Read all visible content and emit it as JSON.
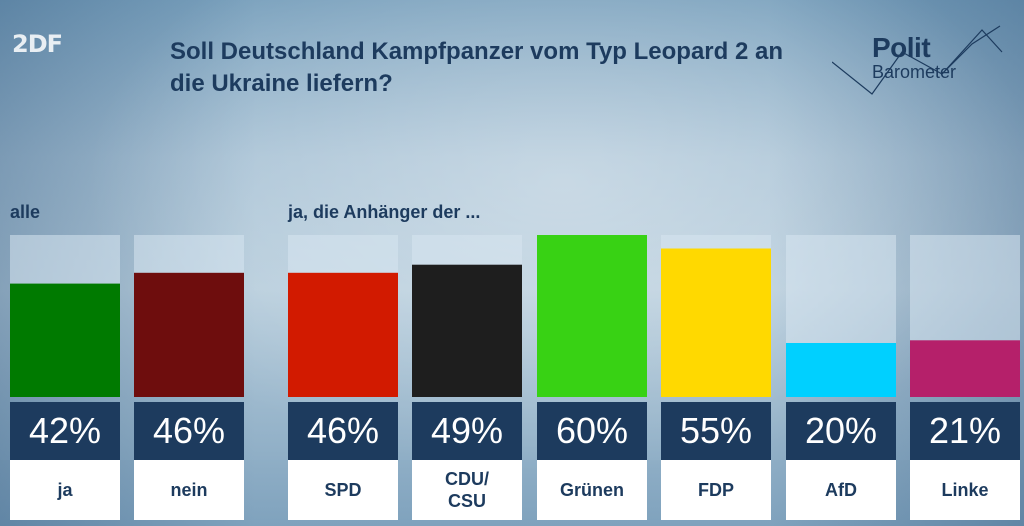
{
  "logo": "2DF",
  "title": "Soll Deutschland Kampfpanzer vom Typ Leopard 2 an die Ukraine liefern?",
  "brand": {
    "line1": "Polit",
    "line2": "Barometer"
  },
  "group_labels": {
    "all": "alle",
    "parties": "ja, die Anhänger der ..."
  },
  "chart_data": {
    "type": "bar",
    "ylim": [
      0,
      100
    ],
    "categories": [
      "ja",
      "nein",
      "SPD",
      "CDU/\nCSU",
      "Grünen",
      "FDP",
      "AfD",
      "Linke"
    ],
    "values": [
      42,
      46,
      46,
      49,
      60,
      55,
      20,
      21
    ],
    "value_labels": [
      "42%",
      "46%",
      "46%",
      "49%",
      "60%",
      "55%",
      "20%",
      "21%"
    ],
    "colors": [
      "#007a00",
      "#6e0d0d",
      "#d21a00",
      "#1e1e1e",
      "#38d214",
      "#ffd900",
      "#00d0ff",
      "#b5206a"
    ],
    "groups": [
      {
        "label": "alle",
        "indices": [
          0,
          1
        ]
      },
      {
        "label": "ja, die Anhänger der ...",
        "indices": [
          2,
          3,
          4,
          5,
          6,
          7
        ]
      }
    ],
    "grid": false,
    "legend": "none"
  }
}
